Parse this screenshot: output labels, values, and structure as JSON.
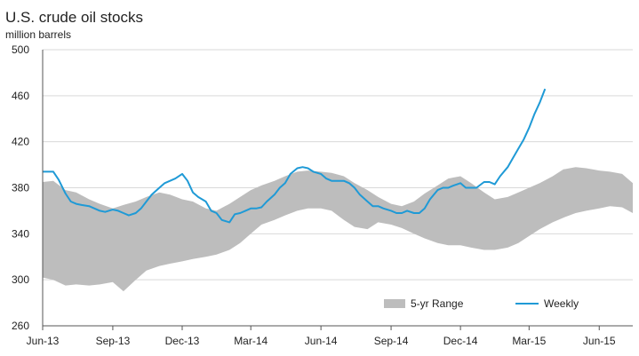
{
  "chart_data": {
    "type": "line",
    "title": "U.S. crude oil stocks",
    "subtitle": "million barrels",
    "ylim": [
      260,
      500
    ],
    "yticks": [
      "500",
      "460",
      "420",
      "380",
      "340",
      "300",
      "260"
    ],
    "xlim": [
      "2013-06-01",
      "2015-07-15"
    ],
    "xticks": [
      {
        "label": "Jun-13",
        "date": "2013-06-01"
      },
      {
        "label": "Sep-13",
        "date": "2013-09-01"
      },
      {
        "label": "Dec-13",
        "date": "2013-12-01"
      },
      {
        "label": "Mar-14",
        "date": "2014-03-01"
      },
      {
        "label": "Jun-14",
        "date": "2014-06-01"
      },
      {
        "label": "Sep-14",
        "date": "2014-09-01"
      },
      {
        "label": "Dec-14",
        "date": "2014-12-01"
      },
      {
        "label": "Mar-15",
        "date": "2015-03-01"
      },
      {
        "label": "Jun-15",
        "date": "2015-06-01"
      }
    ],
    "grid": "horizontal",
    "legend_position": "bottom-right",
    "colors": {
      "range": "#bdbdbd",
      "weekly": "#1f9ad6",
      "grid": "#d9d9d9",
      "axis": "#555555"
    },
    "range": {
      "name": "5-yr Range",
      "x": [
        "2013-06-01",
        "2013-06-15",
        "2013-07-01",
        "2013-07-15",
        "2013-08-01",
        "2013-08-15",
        "2013-09-01",
        "2013-09-15",
        "2013-10-01",
        "2013-10-15",
        "2013-11-01",
        "2013-11-15",
        "2013-12-01",
        "2013-12-15",
        "2014-01-01",
        "2014-01-15",
        "2014-02-01",
        "2014-02-15",
        "2014-03-01",
        "2014-03-15",
        "2014-04-01",
        "2014-04-15",
        "2014-05-01",
        "2014-05-15",
        "2014-06-01",
        "2014-06-15",
        "2014-07-01",
        "2014-07-15",
        "2014-08-01",
        "2014-08-15",
        "2014-09-01",
        "2014-09-15",
        "2014-10-01",
        "2014-10-15",
        "2014-11-01",
        "2014-11-15",
        "2014-12-01",
        "2014-12-15",
        "2015-01-01",
        "2015-01-15",
        "2015-02-01",
        "2015-02-15",
        "2015-03-01",
        "2015-03-15",
        "2015-04-01",
        "2015-04-15",
        "2015-05-01",
        "2015-05-15",
        "2015-06-01",
        "2015-06-15",
        "2015-07-01",
        "2015-07-15"
      ],
      "upper": [
        385,
        386,
        378,
        376,
        370,
        366,
        362,
        365,
        368,
        372,
        376,
        374,
        370,
        368,
        362,
        360,
        366,
        372,
        378,
        382,
        386,
        390,
        394,
        395,
        394,
        393,
        390,
        384,
        378,
        372,
        366,
        364,
        368,
        375,
        382,
        388,
        390,
        384,
        376,
        370,
        372,
        376,
        380,
        384,
        390,
        396,
        398,
        397,
        395,
        394,
        392,
        384
      ],
      "lower": [
        302,
        300,
        295,
        296,
        295,
        296,
        298,
        290,
        300,
        308,
        312,
        314,
        316,
        318,
        320,
        322,
        326,
        332,
        340,
        348,
        352,
        356,
        360,
        362,
        362,
        360,
        352,
        346,
        344,
        350,
        348,
        345,
        340,
        336,
        332,
        330,
        330,
        328,
        326,
        326,
        328,
        332,
        338,
        344,
        350,
        354,
        358,
        360,
        362,
        364,
        363,
        358
      ]
    },
    "series": [
      {
        "name": "Weekly",
        "x": [
          "2013-06-01",
          "2013-06-08",
          "2013-06-15",
          "2013-06-22",
          "2013-07-01",
          "2013-07-08",
          "2013-07-15",
          "2013-07-22",
          "2013-08-01",
          "2013-08-08",
          "2013-08-15",
          "2013-08-22",
          "2013-09-01",
          "2013-09-08",
          "2013-09-15",
          "2013-09-22",
          "2013-10-01",
          "2013-10-08",
          "2013-10-15",
          "2013-10-22",
          "2013-11-01",
          "2013-11-08",
          "2013-11-15",
          "2013-11-22",
          "2013-12-01",
          "2013-12-08",
          "2013-12-15",
          "2013-12-22",
          "2014-01-01",
          "2014-01-08",
          "2014-01-15",
          "2014-01-22",
          "2014-02-01",
          "2014-02-08",
          "2014-02-15",
          "2014-02-22",
          "2014-03-01",
          "2014-03-08",
          "2014-03-15",
          "2014-03-22",
          "2014-04-01",
          "2014-04-08",
          "2014-04-15",
          "2014-04-22",
          "2014-05-01",
          "2014-05-08",
          "2014-05-15",
          "2014-05-22",
          "2014-06-01",
          "2014-06-08",
          "2014-06-15",
          "2014-06-22",
          "2014-07-01",
          "2014-07-08",
          "2014-07-15",
          "2014-07-22",
          "2014-08-01",
          "2014-08-08",
          "2014-08-15",
          "2014-08-22",
          "2014-09-01",
          "2014-09-08",
          "2014-09-15",
          "2014-09-22",
          "2014-10-01",
          "2014-10-08",
          "2014-10-15",
          "2014-10-22",
          "2014-11-01",
          "2014-11-08",
          "2014-11-15",
          "2014-11-22",
          "2014-12-01",
          "2014-12-08",
          "2014-12-15",
          "2014-12-22",
          "2015-01-01",
          "2015-01-08",
          "2015-01-15",
          "2015-01-22",
          "2015-02-01",
          "2015-02-08",
          "2015-02-15",
          "2015-02-22",
          "2015-03-01",
          "2015-03-08",
          "2015-03-15",
          "2015-03-22"
        ],
        "values": [
          394,
          394,
          394,
          387,
          375,
          368,
          366,
          365,
          364,
          362,
          360,
          359,
          361,
          360,
          358,
          356,
          358,
          362,
          368,
          374,
          380,
          384,
          386,
          388,
          392,
          386,
          376,
          372,
          368,
          360,
          358,
          352,
          350,
          357,
          358,
          360,
          362,
          362,
          363,
          368,
          374,
          380,
          384,
          392,
          397,
          398,
          397,
          394,
          392,
          388,
          386,
          386,
          386,
          384,
          380,
          374,
          368,
          364,
          364,
          362,
          360,
          358,
          358,
          360,
          358,
          358,
          362,
          370,
          378,
          380,
          380,
          382,
          384,
          380,
          380,
          380,
          385,
          385,
          383,
          390,
          398,
          406,
          414,
          422,
          432,
          444,
          454,
          466
        ]
      }
    ]
  }
}
